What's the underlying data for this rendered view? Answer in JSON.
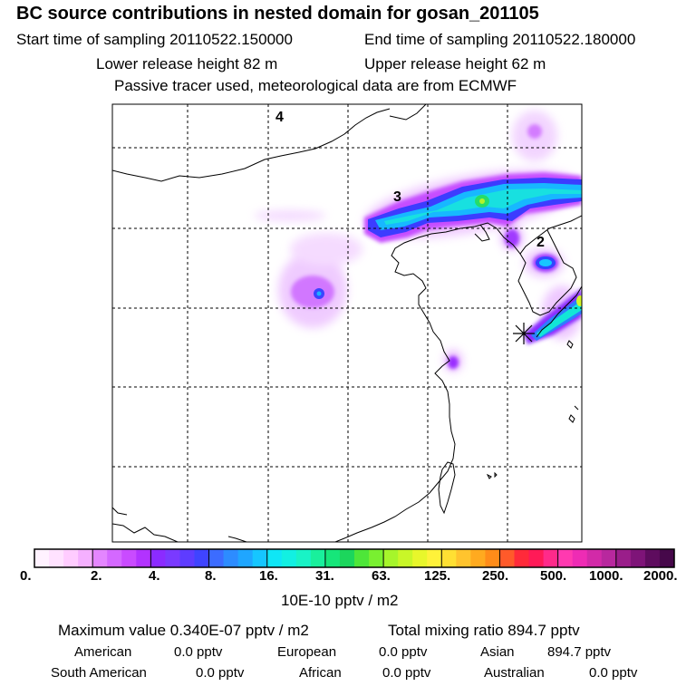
{
  "header": {
    "title": "BC  source contributions in nested domain for gosan_201105",
    "start_time": "Start time of sampling 20110522.150000",
    "end_time": "End time of sampling 20110522.180000",
    "lower_release": "Lower release height   82 m",
    "upper_release": "Upper release height   62 m",
    "tracer_note": "Passive tracer used, meteorological data are from ECMWF"
  },
  "map": {
    "labels": [
      "4",
      "3",
      "2"
    ],
    "gridlines": {
      "lon_count": 5,
      "lat_count": 5
    }
  },
  "colorbar": {
    "unit": "10E-10 pptv / m2",
    "tick_labels": [
      "0.",
      "2.",
      "4.",
      "8.",
      "16.",
      "31.",
      "63.",
      "125.",
      "250.",
      "500.",
      "1000.",
      "2000."
    ],
    "colors": [
      "#fff2ff",
      "#ffe2ff",
      "#ffccff",
      "#f5b0ff",
      "#e486ff",
      "#d468ff",
      "#c94bff",
      "#b233ff",
      "#8b2bff",
      "#7a3aff",
      "#5e3cff",
      "#3f44ff",
      "#3c6cff",
      "#2d8cff",
      "#1fa6ff",
      "#16c6ff",
      "#0fe6f6",
      "#12f0e2",
      "#19f3c6",
      "#19f09c",
      "#16e67a",
      "#1cd65c",
      "#4ee639",
      "#79f030",
      "#a6f52b",
      "#c9f728",
      "#e8f72b",
      "#fff23a",
      "#ffe033",
      "#ffc42e",
      "#ffaa1f",
      "#ff8c19",
      "#ff5a2a",
      "#ff2a3a",
      "#ff1a57",
      "#ff2a8a",
      "#ff3ab0",
      "#ee2cb4",
      "#d22aa8",
      "#b8289e",
      "#9a1e8a",
      "#7e1478",
      "#5e0c5e",
      "#46084a"
    ]
  },
  "summary": {
    "maximum": "Maximum value  0.340E-07 pptv / m2",
    "total": "Total mixing ratio      894.7 pptv",
    "american_label": "American",
    "american_value": "0.0 pptv",
    "european_label": "European",
    "european_value": "0.0 pptv",
    "asian_label": "Asian",
    "asian_value": "894.7 pptv",
    "south_american_label": "South American",
    "south_american_value": "0.0 pptv",
    "african_label": "African",
    "african_value": "0.0 pptv",
    "australian_label": "Australian",
    "australian_value": "0.0 pptv"
  }
}
